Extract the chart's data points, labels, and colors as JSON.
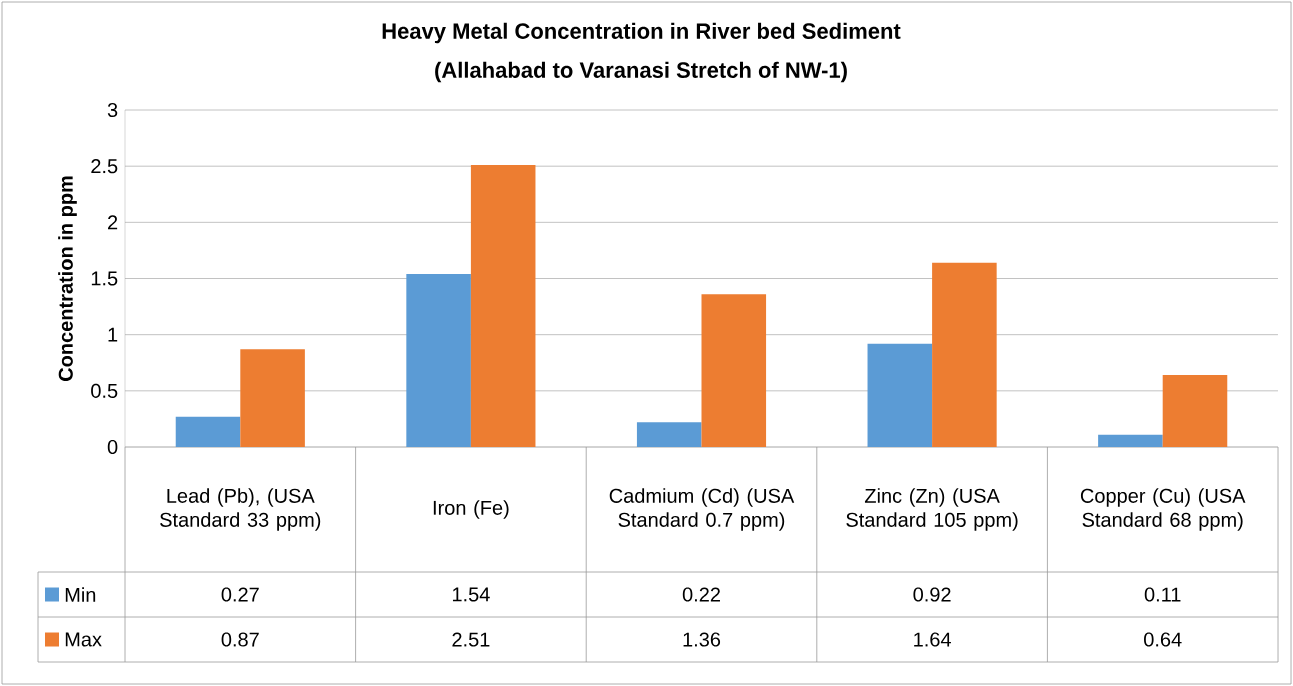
{
  "chart_data": {
    "type": "bar",
    "title": "Heavy Metal Concentration in River bed Sediment",
    "subtitle": "(Allahabad to Varanasi Stretch of NW-1)",
    "ylabel": "Concentration in ppm",
    "categories": [
      "Lead (Pb), (USA Standard 33 ppm)",
      "Iron (Fe)",
      "Cadmium (Cd) (USA Standard 0.7 ppm)",
      "Zinc (Zn) (USA Standard 105 ppm)",
      "Copper (Cu) (USA Standard 68 ppm)"
    ],
    "series": [
      {
        "name": "Min",
        "color": "#5b9bd5",
        "values": [
          0.27,
          1.54,
          0.22,
          0.92,
          0.11
        ]
      },
      {
        "name": "Max",
        "color": "#ed7d31",
        "values": [
          0.87,
          2.51,
          1.36,
          1.64,
          0.64
        ]
      }
    ],
    "ylim": [
      0,
      3
    ],
    "yticks": [
      0,
      0.5,
      1,
      1.5,
      2,
      2.5,
      3
    ],
    "grid": "y",
    "legend": "bottom",
    "data_labels": true
  }
}
